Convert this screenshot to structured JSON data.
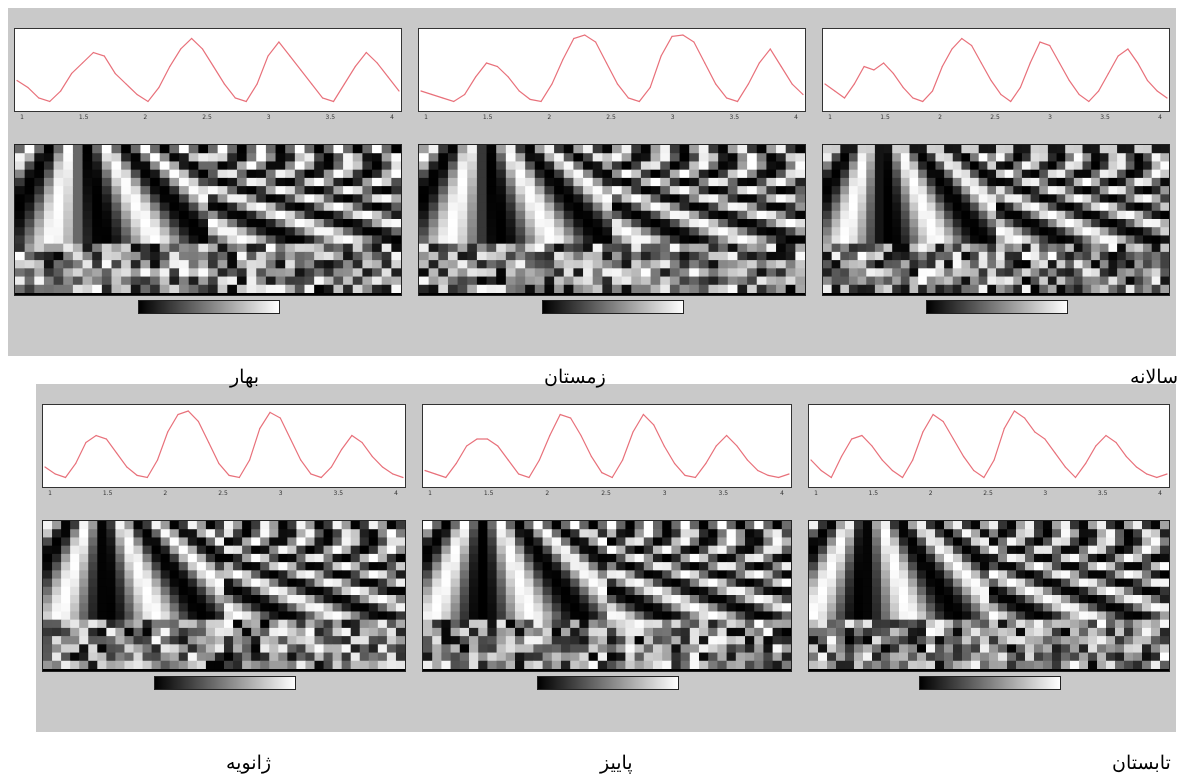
{
  "captions": {
    "top_left": "بهار",
    "top_middle": "زمستان",
    "top_right": "سالانه",
    "bottom_left": "ژانویه",
    "bottom_middle": "پاییز",
    "bottom_right": "تابستان"
  },
  "chart_data": [
    {
      "type": "line",
      "season": "بهار",
      "x_ticks": [
        "1",
        "1.5",
        "2",
        "2.5",
        "3",
        "3.5",
        "4"
      ],
      "series_color": "#e8707a",
      "values": [
        0.35,
        0.25,
        0.1,
        0.05,
        0.2,
        0.45,
        0.6,
        0.75,
        0.7,
        0.45,
        0.3,
        0.15,
        0.05,
        0.25,
        0.55,
        0.8,
        0.95,
        0.8,
        0.55,
        0.3,
        0.1,
        0.05,
        0.3,
        0.7,
        0.9,
        0.7,
        0.5,
        0.3,
        0.1,
        0.05,
        0.3,
        0.55,
        0.75,
        0.6,
        0.4,
        0.2
      ]
    },
    {
      "type": "line",
      "season": "زمستان",
      "x_ticks": [
        "1",
        "1.5",
        "2",
        "2.5",
        "3",
        "3.5",
        "4"
      ],
      "series_color": "#e8707a",
      "values": [
        0.2,
        0.15,
        0.1,
        0.05,
        0.15,
        0.4,
        0.6,
        0.55,
        0.4,
        0.2,
        0.08,
        0.05,
        0.3,
        0.65,
        0.95,
        1.0,
        0.9,
        0.6,
        0.3,
        0.1,
        0.05,
        0.25,
        0.7,
        0.98,
        1.0,
        0.9,
        0.6,
        0.3,
        0.1,
        0.05,
        0.3,
        0.6,
        0.8,
        0.55,
        0.3,
        0.15
      ]
    },
    {
      "type": "line",
      "season": "سالانه",
      "x_ticks": [
        "1",
        "1.5",
        "2",
        "2.5",
        "3",
        "3.5",
        "4"
      ],
      "series_color": "#e8707a",
      "values": [
        0.3,
        0.2,
        0.1,
        0.3,
        0.55,
        0.5,
        0.6,
        0.45,
        0.25,
        0.1,
        0.05,
        0.2,
        0.55,
        0.8,
        0.95,
        0.85,
        0.6,
        0.35,
        0.15,
        0.05,
        0.25,
        0.6,
        0.9,
        0.85,
        0.6,
        0.35,
        0.15,
        0.05,
        0.2,
        0.45,
        0.7,
        0.8,
        0.6,
        0.35,
        0.2,
        0.1
      ]
    },
    {
      "type": "line",
      "season": "ژانویه",
      "x_ticks": [
        "1",
        "1.5",
        "2",
        "2.5",
        "3",
        "3.5",
        "4"
      ],
      "series_color": "#e8707a",
      "values": [
        0.2,
        0.1,
        0.05,
        0.25,
        0.55,
        0.65,
        0.6,
        0.4,
        0.2,
        0.08,
        0.05,
        0.3,
        0.7,
        0.95,
        1.0,
        0.85,
        0.55,
        0.25,
        0.08,
        0.05,
        0.3,
        0.75,
        0.98,
        0.9,
        0.6,
        0.3,
        0.1,
        0.05,
        0.2,
        0.45,
        0.65,
        0.55,
        0.35,
        0.2,
        0.1,
        0.05
      ]
    },
    {
      "type": "line",
      "season": "پاییز",
      "x_ticks": [
        "1",
        "1.5",
        "2",
        "2.5",
        "3",
        "3.5",
        "4"
      ],
      "series_color": "#e8707a",
      "values": [
        0.15,
        0.1,
        0.05,
        0.25,
        0.5,
        0.6,
        0.6,
        0.5,
        0.3,
        0.1,
        0.05,
        0.3,
        0.65,
        0.95,
        0.9,
        0.65,
        0.35,
        0.12,
        0.05,
        0.3,
        0.7,
        0.95,
        0.8,
        0.5,
        0.25,
        0.08,
        0.05,
        0.25,
        0.5,
        0.65,
        0.5,
        0.3,
        0.15,
        0.08,
        0.05,
        0.1
      ]
    },
    {
      "type": "line",
      "season": "تابستان",
      "x_ticks": [
        "1",
        "1.5",
        "2",
        "2.5",
        "3",
        "3.5",
        "4"
      ],
      "series_color": "#e8707a",
      "values": [
        0.3,
        0.15,
        0.05,
        0.35,
        0.6,
        0.65,
        0.5,
        0.3,
        0.15,
        0.05,
        0.3,
        0.7,
        0.95,
        0.85,
        0.6,
        0.35,
        0.15,
        0.05,
        0.3,
        0.75,
        1.0,
        0.9,
        0.7,
        0.6,
        0.4,
        0.2,
        0.05,
        0.25,
        0.5,
        0.65,
        0.55,
        0.35,
        0.2,
        0.1,
        0.05,
        0.1
      ]
    }
  ]
}
